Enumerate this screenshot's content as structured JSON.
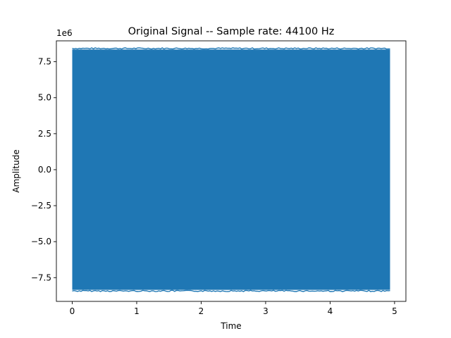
{
  "chart_data": {
    "type": "line",
    "title": "Original Signal -- Sample rate: 44100 Hz",
    "xlabel": "Time",
    "ylabel": "Amplitude",
    "y_offset_label": "1e6",
    "xlim": [
      -0.246,
      5.176
    ],
    "ylim": [
      -9.15,
      8.95
    ],
    "xticks": [
      0,
      1,
      2,
      3,
      4,
      5
    ],
    "xtick_labels": [
      "0",
      "1",
      "2",
      "3",
      "4",
      "5"
    ],
    "yticks": [
      7.5,
      5.0,
      2.5,
      0.0,
      -2.5,
      -5.0,
      -7.5
    ],
    "ytick_labels": [
      "7.5",
      "5.0",
      "2.5",
      "0.0",
      "−2.5",
      "−5.0",
      "−7.5"
    ],
    "grid": false,
    "series": [
      {
        "color": "#1f77b4",
        "x_range": [
          0,
          4.93
        ],
        "amplitude_envelope": [
          -8.35,
          8.35
        ],
        "sample_rate_hz": 44100,
        "description_values": {
          "x": [
            0,
            0.5,
            1,
            1.5,
            2,
            2.5,
            3,
            3.5,
            4,
            4.5,
            4.93
          ],
          "y_max": [
            8.3,
            8.4,
            8.35,
            8.4,
            8.35,
            8.4,
            8.35,
            8.4,
            8.35,
            8.4,
            8.3
          ],
          "y_min": [
            -8.3,
            -8.4,
            -8.35,
            -8.4,
            -8.35,
            -8.4,
            -8.35,
            -8.4,
            -8.35,
            -8.4,
            -8.3
          ]
        }
      }
    ]
  }
}
